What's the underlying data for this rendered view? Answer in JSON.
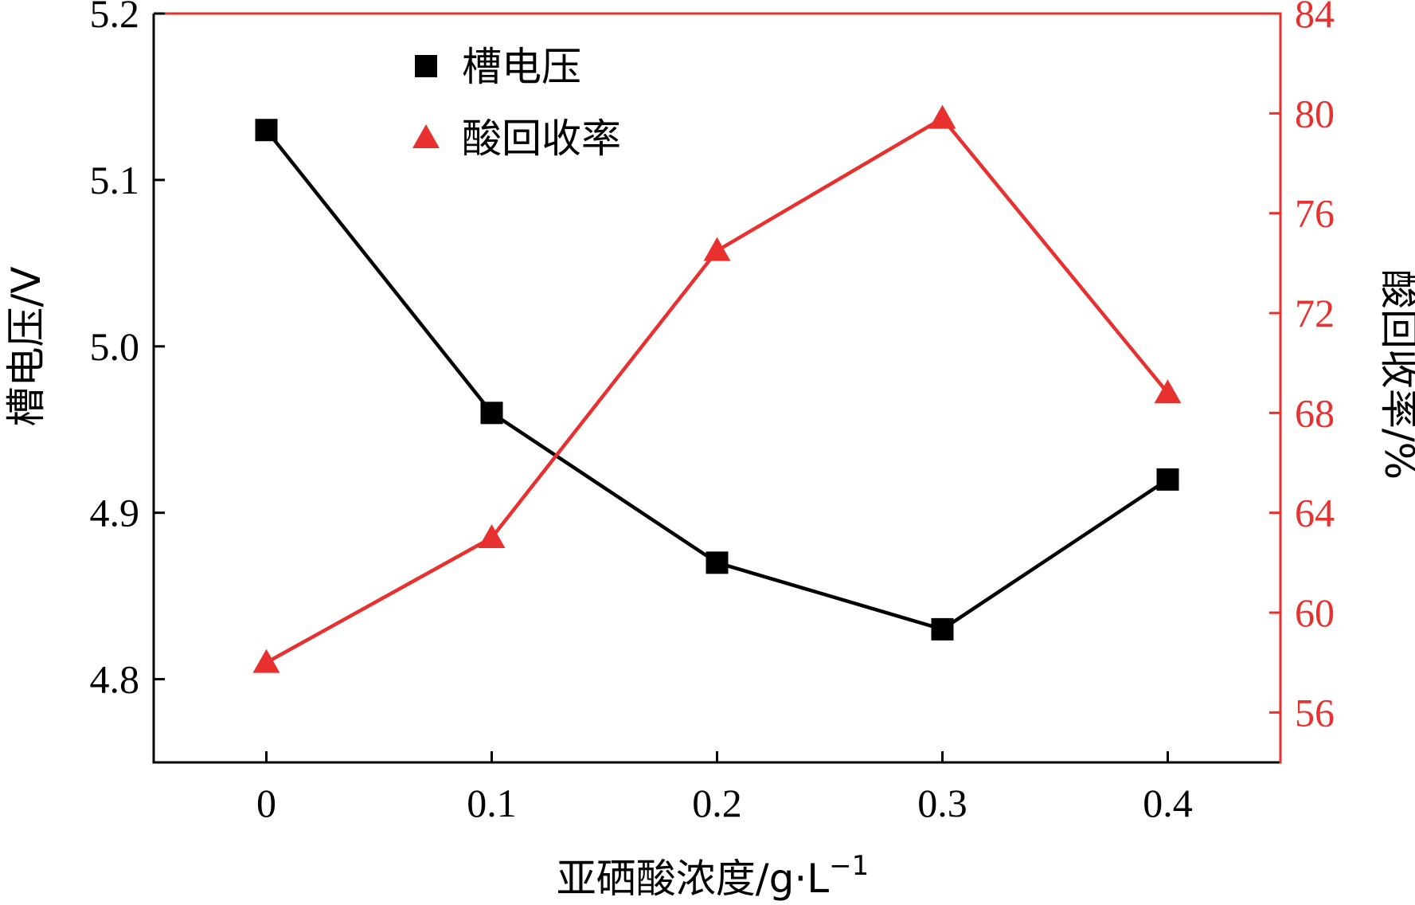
{
  "chart_data": {
    "type": "line",
    "x": [
      0,
      0.1,
      0.2,
      0.3,
      0.4
    ],
    "x_tick_labels": [
      "0",
      "0.1",
      "0.2",
      "0.3",
      "0.4"
    ],
    "xlim": [
      -0.05,
      0.45
    ],
    "xlabel": "亚硒酸浓度/g·L",
    "xlabel_sup": "−1",
    "y_left": {
      "label": "槽电压/V",
      "ylim": [
        4.75,
        5.2
      ],
      "ticks": [
        4.8,
        4.9,
        5.0,
        5.1,
        5.2
      ],
      "tick_labels": [
        "4.8",
        "4.9",
        "5.0",
        "5.1",
        "5.2"
      ],
      "color": "#000000"
    },
    "y_right": {
      "label": "酸回收率/%",
      "ylim": [
        54,
        84
      ],
      "ticks": [
        56,
        60,
        64,
        68,
        72,
        76,
        80,
        84
      ],
      "tick_labels": [
        "56",
        "60",
        "64",
        "68",
        "72",
        "76",
        "80",
        "84"
      ],
      "color": "#e8312f"
    },
    "series": [
      {
        "name": "槽电压",
        "axis": "left",
        "marker": "square",
        "color": "#000000",
        "values": [
          5.13,
          4.96,
          4.87,
          4.83,
          4.92
        ]
      },
      {
        "name": "酸回收率",
        "axis": "right",
        "marker": "triangle",
        "color": "#e8312f",
        "values": [
          58.0,
          63.0,
          74.5,
          79.8,
          68.8
        ]
      }
    ],
    "legend_position": "top-left",
    "grid": false
  }
}
